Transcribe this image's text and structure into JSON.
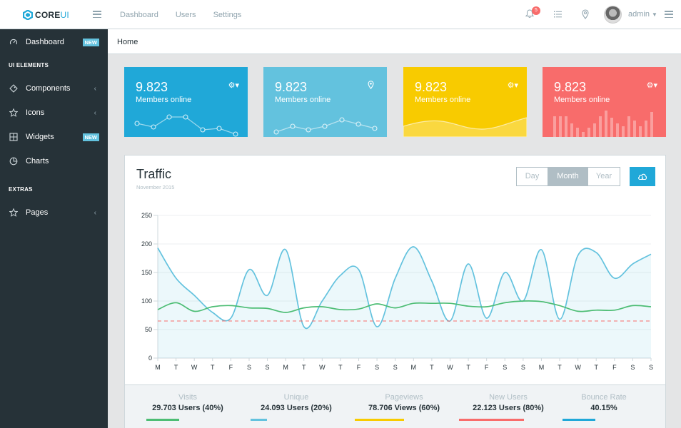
{
  "header": {
    "brand_prefix": "CORE",
    "brand_suffix": "UI",
    "nav": [
      "Dashboard",
      "Users",
      "Settings"
    ],
    "notification_count": "5",
    "user": "admin"
  },
  "sidebar": {
    "items": [
      {
        "label": "Dashboard",
        "badge": "NEW"
      },
      {
        "label": "Components"
      },
      {
        "label": "Icons"
      },
      {
        "label": "Widgets",
        "badge": "NEW"
      },
      {
        "label": "Charts"
      },
      {
        "label": "Pages"
      }
    ],
    "sections": [
      "UI ELEMENTS",
      "EXTRAS"
    ]
  },
  "breadcrumb": "Home",
  "cards": [
    {
      "value": "9.823",
      "label": "Members online",
      "color": "#20a8d8",
      "icon": "gear-icon"
    },
    {
      "value": "9.823",
      "label": "Members online",
      "color": "#63c2de",
      "icon": "location-pin-icon"
    },
    {
      "value": "9.823",
      "label": "Members online",
      "color": "#f8cb00",
      "icon": "gear-icon"
    },
    {
      "value": "9.823",
      "label": "Members online",
      "color": "#f86c6b",
      "icon": "gear-icon"
    }
  ],
  "traffic": {
    "title": "Traffic",
    "subtitle": "November 2015",
    "periods": [
      "Day",
      "Month",
      "Year"
    ],
    "active_period": "Month"
  },
  "chart_data": {
    "type": "line",
    "categories": [
      "M",
      "T",
      "W",
      "T",
      "F",
      "S",
      "S",
      "M",
      "T",
      "W",
      "T",
      "F",
      "S",
      "S",
      "M",
      "T",
      "W",
      "T",
      "F",
      "S",
      "S",
      "M",
      "T",
      "W",
      "T",
      "F",
      "S",
      "S"
    ],
    "ylim": [
      0,
      250
    ],
    "yticks": [
      0,
      50,
      100,
      150,
      200,
      250
    ],
    "series": [
      {
        "color": "#63c2de",
        "filled": true,
        "values": [
          193,
          140,
          110,
          80,
          70,
          155,
          110,
          190,
          55,
          100,
          145,
          155,
          55,
          140,
          195,
          135,
          65,
          165,
          70,
          150,
          100,
          190,
          68,
          180,
          185,
          140,
          165,
          182
        ]
      },
      {
        "color": "#4dbd74",
        "filled": false,
        "values": [
          85,
          97,
          82,
          90,
          92,
          88,
          87,
          80,
          88,
          90,
          85,
          86,
          95,
          88,
          96,
          96,
          96,
          91,
          90,
          97,
          100,
          99,
          92,
          82,
          84,
          84,
          92,
          90
        ]
      },
      {
        "color": "#f86c6b",
        "dashed": true,
        "values": [
          65,
          65,
          65,
          65,
          65,
          65,
          65,
          65,
          65,
          65,
          65,
          65,
          65,
          65,
          65,
          65,
          65,
          65,
          65,
          65,
          65,
          65,
          65,
          65,
          65,
          65,
          65,
          65
        ]
      }
    ]
  },
  "stats": [
    {
      "title": "Visits",
      "value": "29.703 Users (40%)",
      "color": "#4dbd74",
      "progress": 40
    },
    {
      "title": "Unique",
      "value": "24.093 Users (20%)",
      "color": "#63c2de",
      "progress": 20
    },
    {
      "title": "Pageviews",
      "value": "78.706 Views (60%)",
      "color": "#f8cb00",
      "progress": 60
    },
    {
      "title": "New Users",
      "value": "22.123 Users (80%)",
      "color": "#f86c6b",
      "progress": 80
    },
    {
      "title": "Bounce Rate",
      "value": "40.15%",
      "color": "#20a8d8",
      "progress": 40
    }
  ]
}
